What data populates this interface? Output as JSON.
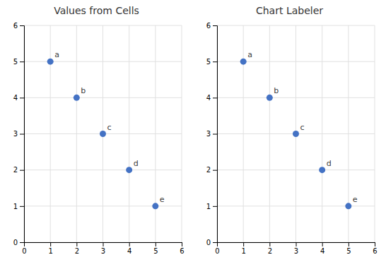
{
  "chart_data": [
    {
      "type": "scatter",
      "title": "Values from Cells",
      "x": [
        1,
        2,
        3,
        4,
        5
      ],
      "values": [
        5,
        4,
        3,
        2,
        1
      ],
      "point_labels": [
        "a",
        "b",
        "c",
        "d",
        "e"
      ],
      "color": "#4472C4",
      "xlim": [
        0,
        6
      ],
      "ylim": [
        0,
        6
      ],
      "xticks": [
        0,
        1,
        2,
        3,
        4,
        5,
        6
      ],
      "yticks": [
        0,
        1,
        2,
        3,
        4,
        5,
        6
      ],
      "grid": true
    },
    {
      "type": "scatter",
      "title": "Chart Labeler",
      "x": [
        1,
        2,
        3,
        4,
        5
      ],
      "values": [
        5,
        4,
        3,
        2,
        1
      ],
      "point_labels": [
        "a",
        "b",
        "c",
        "d",
        "e"
      ],
      "color": "#4472C4",
      "xlim": [
        0,
        6
      ],
      "ylim": [
        0,
        6
      ],
      "xticks": [
        0,
        1,
        2,
        3,
        4,
        5,
        6
      ],
      "yticks": [
        0,
        1,
        2,
        3,
        4,
        5,
        6
      ],
      "grid": true
    }
  ]
}
